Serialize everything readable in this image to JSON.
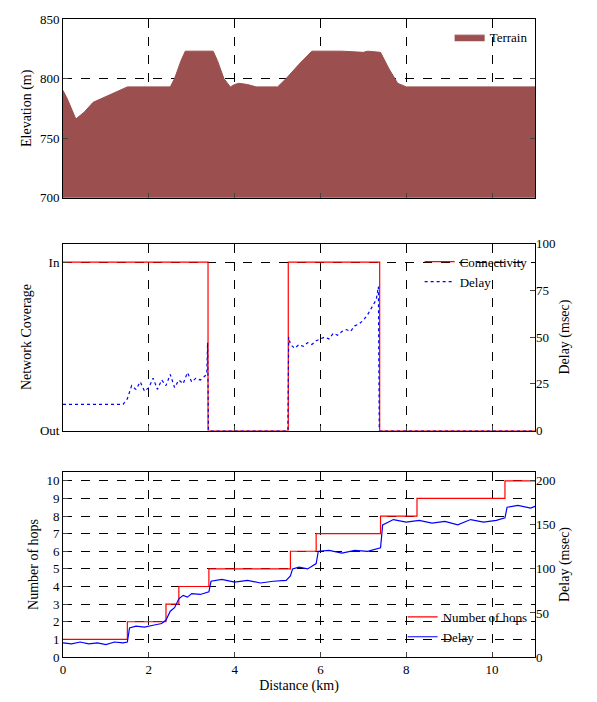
{
  "chart_data": [
    {
      "type": "area",
      "y_label": "Elevation (m)",
      "xlim": [
        0,
        11
      ],
      "xticks": [
        0,
        2,
        4,
        6,
        8,
        10
      ],
      "ylim": [
        700,
        850
      ],
      "yticks": [
        700,
        750,
        800,
        850
      ],
      "grid": true,
      "legend": "upper right",
      "tick_labels": "y",
      "series": [
        {
          "name": "Terrain",
          "color": "#9b4f4f",
          "type": "area",
          "x": [
            0,
            0.1,
            0.3,
            0.5,
            0.7,
            1.0,
            1.3,
            1.5,
            2.0,
            2.5,
            2.6,
            2.75,
            2.85,
            3.5,
            3.6,
            3.75,
            3.9,
            4.0,
            4.1,
            4.3,
            4.5,
            5.0,
            5.2,
            5.5,
            5.8,
            6.0,
            6.5,
            7.0,
            7.1,
            7.4,
            7.6,
            7.8,
            8.0,
            11
          ],
          "values": [
            790,
            783,
            766,
            772,
            780,
            785,
            790,
            793,
            793,
            793,
            800,
            815,
            823,
            823,
            815,
            800,
            793,
            795,
            796,
            795,
            793,
            793,
            800,
            812,
            823,
            823,
            823,
            822,
            823,
            822,
            808,
            796,
            793,
            793
          ]
        }
      ]
    },
    {
      "type": "line",
      "y_label": "Network Coverage",
      "y2_label": "Delay (msec)",
      "xlim": [
        0,
        11
      ],
      "xticks": [
        0,
        2,
        4,
        6,
        8,
        10
      ],
      "ylim": [
        0,
        1.11
      ],
      "yticks": [
        {
          "value": 0,
          "label": "Out"
        },
        {
          "value": 1,
          "label": "In"
        }
      ],
      "y2lim": [
        0,
        100
      ],
      "y2ticks": [
        0,
        25,
        50,
        75,
        100
      ],
      "grid": true,
      "legend": "upper right",
      "tick_labels": "y",
      "series": [
        {
          "name": "Connectivity",
          "color": "#ff0000",
          "line_style": "solid",
          "x": [
            0,
            3.38,
            3.38,
            5.25,
            5.25,
            7.38,
            7.38,
            11
          ],
          "values": [
            1,
            1,
            0,
            0,
            1,
            1,
            0,
            0
          ]
        },
        {
          "name": "Delay",
          "color": "#0000ff",
          "line_style": "dotted",
          "axis": "y2",
          "x": [
            0,
            0.5,
            1.0,
            1.4,
            1.5,
            1.6,
            1.7,
            1.8,
            1.9,
            2.0,
            2.1,
            2.2,
            2.3,
            2.4,
            2.5,
            2.6,
            2.7,
            2.8,
            2.9,
            3.0,
            3.1,
            3.2,
            3.3,
            3.35,
            3.37,
            3.39,
            4.0,
            5.0,
            5.24,
            5.26,
            5.3,
            5.4,
            5.5,
            5.6,
            5.7,
            5.8,
            5.9,
            6.0,
            6.1,
            6.2,
            6.3,
            6.4,
            6.5,
            6.6,
            6.7,
            6.8,
            6.9,
            7.0,
            7.1,
            7.2,
            7.3,
            7.35,
            7.37,
            8.0,
            11
          ],
          "values": [
            14,
            14,
            14,
            14,
            17,
            24,
            22,
            26,
            21,
            23,
            28,
            22,
            27,
            24,
            30,
            23,
            27,
            25,
            31,
            26,
            28,
            27,
            29,
            30,
            47,
            0,
            0,
            0,
            0,
            50,
            46,
            44,
            46,
            45,
            47,
            46,
            48,
            49,
            50,
            49,
            52,
            51,
            53,
            54,
            53,
            56,
            57,
            59,
            62,
            66,
            70,
            77,
            0,
            0,
            0
          ]
        }
      ]
    },
    {
      "type": "line",
      "x_label": "Distance (km)",
      "y_label": "Number of hops",
      "y2_label": "Delay (msec)",
      "xlim": [
        0,
        11
      ],
      "xticks": [
        0,
        2,
        4,
        6,
        8,
        10
      ],
      "ylim": [
        0,
        10.5
      ],
      "yticks": [
        0,
        1,
        2,
        3,
        4,
        5,
        6,
        7,
        8,
        9,
        10
      ],
      "y2lim": [
        0,
        210
      ],
      "y2ticks": [
        0,
        50,
        100,
        150,
        200
      ],
      "grid": true,
      "legend": "lower right",
      "series": [
        {
          "name": "Number of hops",
          "color": "#ff0000",
          "line_style": "solid",
          "x": [
            0,
            1.5,
            1.5,
            2.4,
            2.4,
            2.7,
            2.7,
            3.4,
            3.4,
            5.3,
            5.3,
            5.9,
            5.9,
            7.4,
            7.4,
            8.25,
            8.25,
            10.3,
            10.3,
            11
          ],
          "values": [
            1,
            1,
            2,
            2,
            3,
            3,
            4,
            4,
            5,
            5,
            6,
            6,
            7,
            7,
            8,
            8,
            9,
            9,
            10,
            10
          ]
        },
        {
          "name": "Delay",
          "color": "#0000ff",
          "line_style": "solid",
          "axis": "y2",
          "x": [
            0,
            0.2,
            0.4,
            0.6,
            0.8,
            1.0,
            1.2,
            1.4,
            1.5,
            1.55,
            1.7,
            1.9,
            2.1,
            2.3,
            2.4,
            2.5,
            2.6,
            2.7,
            2.8,
            2.9,
            3.0,
            3.2,
            3.4,
            3.45,
            3.7,
            4.0,
            4.3,
            4.6,
            4.9,
            5.2,
            5.3,
            5.35,
            5.5,
            5.7,
            5.9,
            5.95,
            6.2,
            6.5,
            6.8,
            7.1,
            7.4,
            7.45,
            7.7,
            8.0,
            8.3,
            8.6,
            8.9,
            9.2,
            9.5,
            9.8,
            10.1,
            10.3,
            10.35,
            10.6,
            10.9,
            11
          ],
          "values": [
            16,
            15,
            17,
            15,
            16,
            14,
            17,
            16,
            17,
            33,
            35,
            34,
            36,
            38,
            42,
            52,
            56,
            66,
            70,
            68,
            72,
            71,
            74,
            86,
            88,
            85,
            87,
            84,
            86,
            87,
            92,
            100,
            102,
            100,
            106,
            120,
            121,
            118,
            121,
            120,
            124,
            150,
            156,
            153,
            155,
            152,
            154,
            150,
            156,
            153,
            155,
            158,
            170,
            172,
            169,
            171
          ]
        }
      ]
    }
  ]
}
